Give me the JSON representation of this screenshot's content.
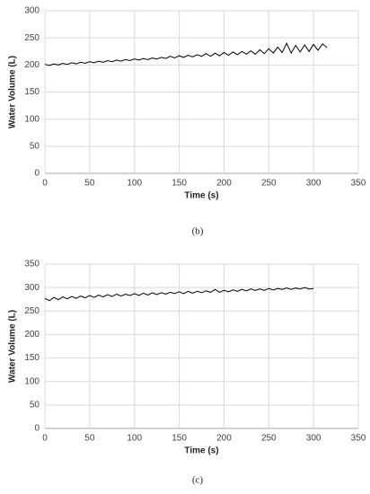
{
  "chart_data": [
    {
      "type": "line",
      "caption": "(b)",
      "x_label": "Time (s)",
      "y_label": "Water Volume (L)",
      "xlim": [
        0,
        350
      ],
      "xticks": [
        0,
        50,
        100,
        150,
        200,
        250,
        300,
        350
      ],
      "ylim": [
        0,
        300
      ],
      "yticks": [
        0,
        50,
        100,
        150,
        200,
        250,
        300
      ],
      "grid": true,
      "color": "#000000",
      "x": [
        0,
        5,
        10,
        15,
        20,
        25,
        30,
        35,
        40,
        45,
        50,
        55,
        60,
        65,
        70,
        75,
        80,
        85,
        90,
        95,
        100,
        105,
        110,
        115,
        120,
        125,
        130,
        135,
        140,
        145,
        150,
        155,
        160,
        165,
        170,
        175,
        180,
        185,
        190,
        195,
        200,
        205,
        210,
        215,
        220,
        225,
        230,
        235,
        240,
        245,
        250,
        255,
        260,
        265,
        270,
        275,
        280,
        285,
        290,
        295,
        300,
        305,
        310,
        315
      ],
      "values": [
        201,
        199,
        202,
        200,
        203,
        201,
        204,
        202,
        205,
        203,
        206,
        204,
        207,
        205,
        208,
        206,
        209,
        207,
        210,
        208,
        211,
        209,
        212,
        210,
        213,
        211,
        214,
        212,
        216,
        213,
        217,
        214,
        218,
        215,
        219,
        216,
        221,
        216,
        222,
        217,
        223,
        218,
        224,
        219,
        225,
        220,
        226,
        220,
        228,
        221,
        230,
        222,
        233,
        223,
        240,
        222,
        236,
        224,
        237,
        225,
        238,
        227,
        239,
        232
      ]
    },
    {
      "type": "line",
      "caption": "(c)",
      "x_label": "Time (s)",
      "y_label": "Water Volume (L)",
      "xlim": [
        0,
        350
      ],
      "xticks": [
        0,
        50,
        100,
        150,
        200,
        250,
        300,
        350
      ],
      "ylim": [
        0,
        350
      ],
      "yticks": [
        0,
        50,
        100,
        150,
        200,
        250,
        300,
        350
      ],
      "grid": true,
      "color": "#000000",
      "x": [
        0,
        5,
        10,
        15,
        20,
        25,
        30,
        35,
        40,
        45,
        50,
        55,
        60,
        65,
        70,
        75,
        80,
        85,
        90,
        95,
        100,
        105,
        110,
        115,
        120,
        125,
        130,
        135,
        140,
        145,
        150,
        155,
        160,
        165,
        170,
        175,
        180,
        185,
        190,
        195,
        200,
        205,
        210,
        215,
        220,
        225,
        230,
        235,
        240,
        245,
        250,
        255,
        260,
        265,
        270,
        275,
        280,
        285,
        290,
        295,
        300
      ],
      "values": [
        277,
        272,
        279,
        274,
        280,
        276,
        281,
        277,
        282,
        278,
        283,
        279,
        284,
        280,
        285,
        281,
        286,
        282,
        286,
        283,
        287,
        283,
        288,
        284,
        289,
        285,
        289,
        286,
        290,
        287,
        291,
        287,
        292,
        288,
        292,
        289,
        293,
        290,
        296,
        290,
        294,
        291,
        295,
        292,
        296,
        293,
        297,
        294,
        297,
        294,
        298,
        295,
        298,
        296,
        299,
        296,
        299,
        297,
        300,
        297,
        298
      ]
    }
  ]
}
